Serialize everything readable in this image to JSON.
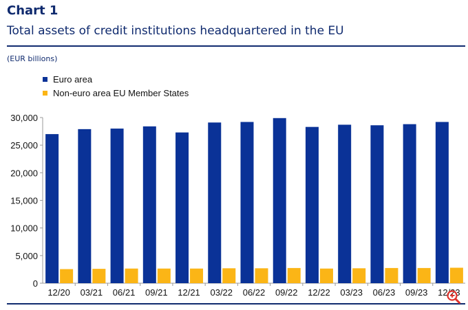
{
  "header": {
    "label": "Chart 1",
    "title": "Total assets of credit institutions headquartered in the EU",
    "unit": "(EUR billions)"
  },
  "colors": {
    "euro_area": "#0a3297",
    "non_euro": "#fbb516",
    "text_dark": "#0f2a6e"
  },
  "icons": {
    "zoom": "zoom-in-icon"
  },
  "chart_data": {
    "type": "bar",
    "categories": [
      "12/20",
      "03/21",
      "06/21",
      "09/21",
      "12/21",
      "03/22",
      "06/22",
      "09/22",
      "12/22",
      "03/23",
      "06/23",
      "09/23",
      "12/23"
    ],
    "series": [
      {
        "name": "Euro area",
        "values": [
          27000,
          27900,
          28000,
          28400,
          27300,
          29100,
          29200,
          29900,
          28300,
          28700,
          28600,
          28800,
          29200
        ]
      },
      {
        "name": "Non-euro area EU Member States",
        "values": [
          2550,
          2600,
          2650,
          2650,
          2650,
          2700,
          2700,
          2750,
          2650,
          2700,
          2750,
          2750,
          2800
        ]
      }
    ],
    "yticks": [
      "0",
      "5,000",
      "10,000",
      "15,000",
      "20,000",
      "25,000",
      "30,000"
    ],
    "ylim": [
      0,
      30000
    ],
    "grid": false,
    "legend_position": "top-left"
  }
}
